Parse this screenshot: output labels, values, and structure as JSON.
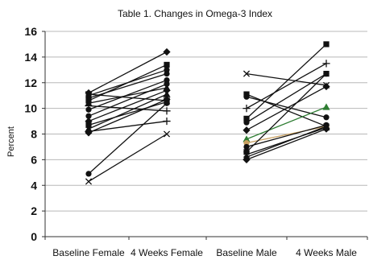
{
  "chart_data": {
    "type": "line",
    "title": "Table 1. Changes in Omega-3 Index",
    "xlabel": "",
    "ylabel": "Percent",
    "ylim": [
      0,
      16
    ],
    "yticks": [
      0,
      2,
      4,
      6,
      8,
      10,
      12,
      14,
      16
    ],
    "grid": true,
    "legend": "none",
    "categories": [
      "Baseline Female",
      "4 Weeks Female",
      "Baseline Male",
      "4 Weeks Male"
    ],
    "groups": [
      {
        "name": "Female",
        "from": "Baseline Female",
        "to": "4 Weeks Female",
        "pairs": [
          {
            "marker": "diamond",
            "color": "#111111",
            "values": [
              11.2,
              14.4
            ]
          },
          {
            "marker": "circle",
            "color": "#111111",
            "values": [
              11.0,
              13.0
            ]
          },
          {
            "marker": "circle",
            "color": "#111111",
            "values": [
              10.8,
              12.7
            ]
          },
          {
            "marker": "square",
            "color": "#111111",
            "values": [
              10.6,
              13.4
            ]
          },
          {
            "marker": "triangle",
            "color": "#111111",
            "values": [
              10.4,
              11.6
            ]
          },
          {
            "marker": "x",
            "color": "#111111",
            "values": [
              11.1,
              10.6
            ]
          },
          {
            "marker": "plus",
            "color": "#111111",
            "values": [
              10.2,
              9.8
            ]
          },
          {
            "marker": "circle",
            "color": "#111111",
            "values": [
              9.9,
              12.2
            ]
          },
          {
            "marker": "circle",
            "color": "#111111",
            "values": [
              9.4,
              11.9
            ]
          },
          {
            "marker": "diamond",
            "color": "#111111",
            "values": [
              9.0,
              11.4
            ]
          },
          {
            "marker": "square",
            "color": "#111111",
            "values": [
              8.7,
              10.5
            ]
          },
          {
            "marker": "triangle",
            "color": "#111111",
            "values": [
              8.4,
              11.1
            ]
          },
          {
            "marker": "plus",
            "color": "#111111",
            "values": [
              8.2,
              9.0
            ]
          },
          {
            "marker": "diamond",
            "color": "#111111",
            "values": [
              8.1,
              10.7
            ]
          },
          {
            "marker": "circle",
            "color": "#111111",
            "values": [
              4.9,
              10.4
            ]
          },
          {
            "marker": "x",
            "color": "#111111",
            "values": [
              4.3,
              8.0
            ]
          }
        ]
      },
      {
        "name": "Male",
        "from": "Baseline Male",
        "to": "4 Weeks Male",
        "pairs": [
          {
            "marker": "x",
            "color": "#111111",
            "values": [
              12.7,
              11.8
            ]
          },
          {
            "marker": "square",
            "color": "#111111",
            "values": [
              11.1,
              8.6
            ]
          },
          {
            "marker": "circle",
            "color": "#111111",
            "values": [
              10.9,
              9.3
            ]
          },
          {
            "marker": "plus",
            "color": "#111111",
            "values": [
              10.0,
              13.5
            ]
          },
          {
            "marker": "square",
            "color": "#111111",
            "values": [
              9.2,
              15.0
            ]
          },
          {
            "marker": "circle",
            "color": "#111111",
            "values": [
              8.9,
              12.7
            ]
          },
          {
            "marker": "diamond",
            "color": "#111111",
            "values": [
              8.3,
              11.7
            ]
          },
          {
            "marker": "triangle",
            "color": "#2e7d32",
            "values": [
              7.6,
              10.1
            ]
          },
          {
            "marker": "circle",
            "color": "#c8a060",
            "values": [
              7.3,
              8.6
            ]
          },
          {
            "marker": "circle",
            "color": "#111111",
            "values": [
              7.0,
              8.7
            ]
          },
          {
            "marker": "square",
            "color": "#111111",
            "values": [
              6.6,
              12.7
            ]
          },
          {
            "marker": "x",
            "color": "#111111",
            "values": [
              6.4,
              8.5
            ]
          },
          {
            "marker": "triangle",
            "color": "#111111",
            "values": [
              6.2,
              8.6
            ]
          },
          {
            "marker": "diamond",
            "color": "#111111",
            "values": [
              6.0,
              8.4
            ]
          }
        ]
      }
    ]
  }
}
